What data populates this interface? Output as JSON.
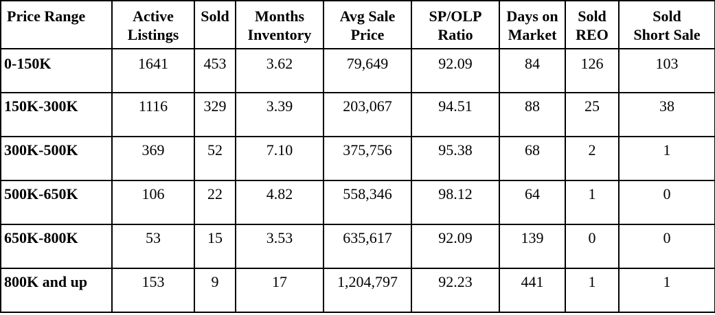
{
  "table": {
    "headers": [
      [
        "Price Range",
        ""
      ],
      [
        "Active",
        "Listings"
      ],
      [
        "Sold",
        ""
      ],
      [
        "Months",
        "Inventory"
      ],
      [
        "Avg Sale",
        "Price"
      ],
      [
        "SP/OLP",
        "Ratio"
      ],
      [
        "Days on",
        "Market"
      ],
      [
        "Sold",
        "REO"
      ],
      [
        "Sold",
        "Short Sale"
      ]
    ],
    "rows": [
      [
        "0-150K",
        "1641",
        "453",
        "3.62",
        "79,649",
        "92.09",
        "84",
        "126",
        "103"
      ],
      [
        "150K-300K",
        "1116",
        "329",
        "3.39",
        "203,067",
        "94.51",
        "88",
        "25",
        "38"
      ],
      [
        "300K-500K",
        "369",
        "52",
        "7.10",
        "375,756",
        "95.38",
        "68",
        "2",
        "1"
      ],
      [
        "500K-650K",
        "106",
        "22",
        "4.82",
        "558,346",
        "98.12",
        "64",
        "1",
        "0"
      ],
      [
        "650K-800K",
        "53",
        "15",
        "3.53",
        "635,617",
        "92.09",
        "139",
        "0",
        "0"
      ],
      [
        "800K and up",
        "153",
        "9",
        "17",
        "1,204,797",
        "92.23",
        "441",
        "1",
        "1"
      ]
    ]
  }
}
